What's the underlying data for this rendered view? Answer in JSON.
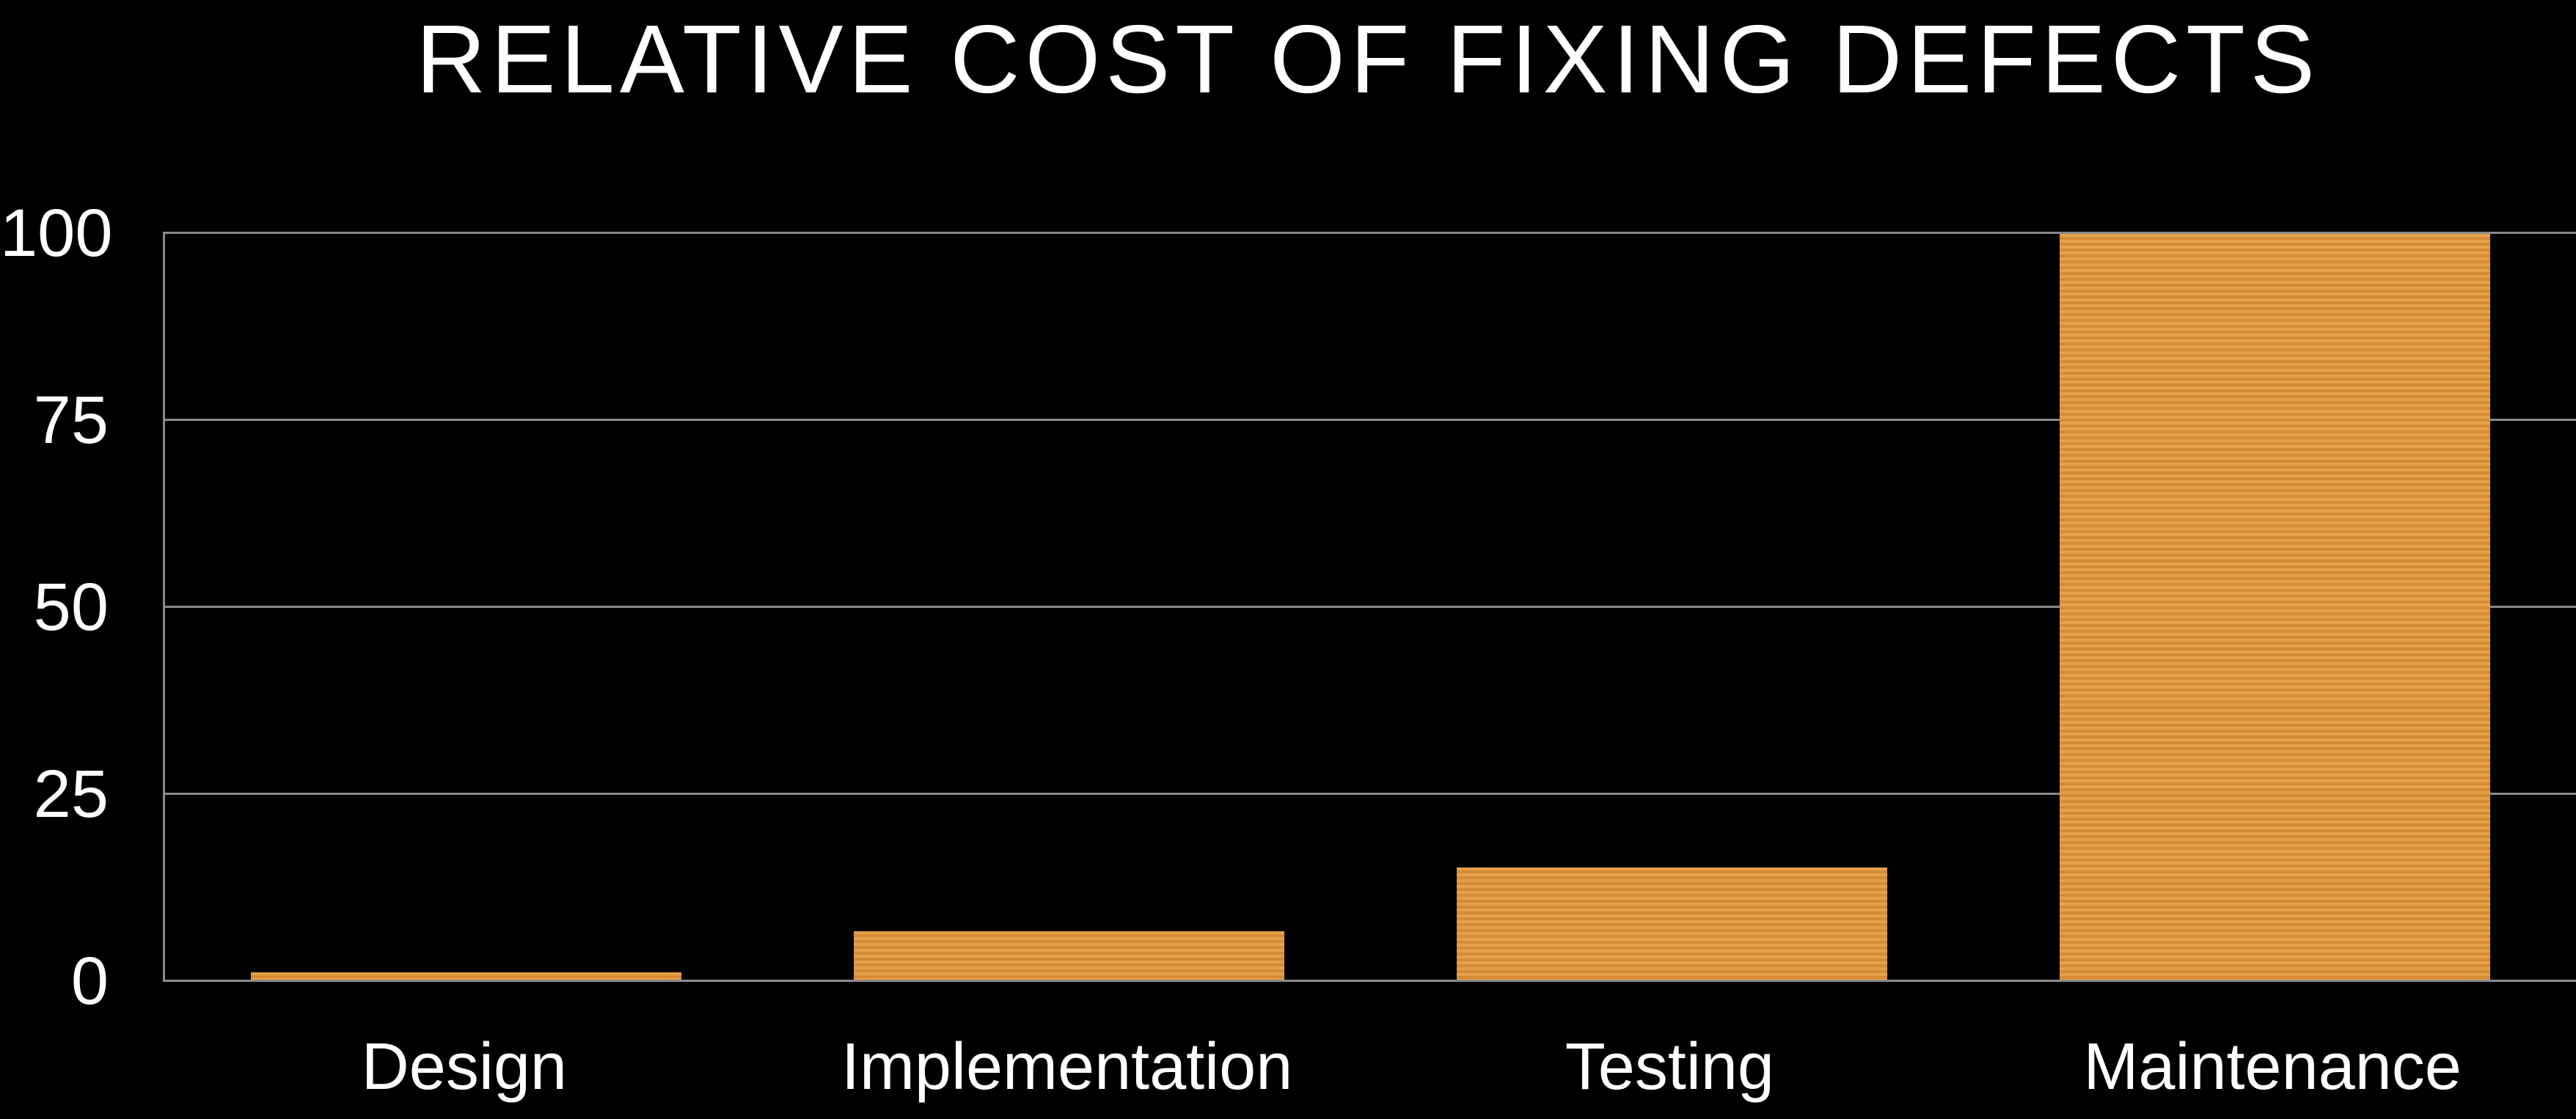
{
  "title": "RELATIVE COST OF FIXING DEFECTS",
  "chart_data": {
    "type": "bar",
    "title": "RELATIVE COST OF FIXING DEFECTS",
    "categories": [
      "Design",
      "Implementation",
      "Testing",
      "Maintenance"
    ],
    "values": [
      1,
      6.5,
      15,
      100
    ],
    "xlabel": "",
    "ylabel": "",
    "yticks": [
      0,
      25,
      50,
      75,
      100
    ],
    "ylim": [
      0,
      100
    ],
    "grid": true,
    "legend": false,
    "colors": {
      "background": "#000000",
      "bar_stripe_light": "#E5A04A",
      "bar_stripe_dark": "#D58C35",
      "gridline": "#8A8A8A",
      "axis": "#8A8A8A",
      "text": "#FFFFFF"
    }
  }
}
